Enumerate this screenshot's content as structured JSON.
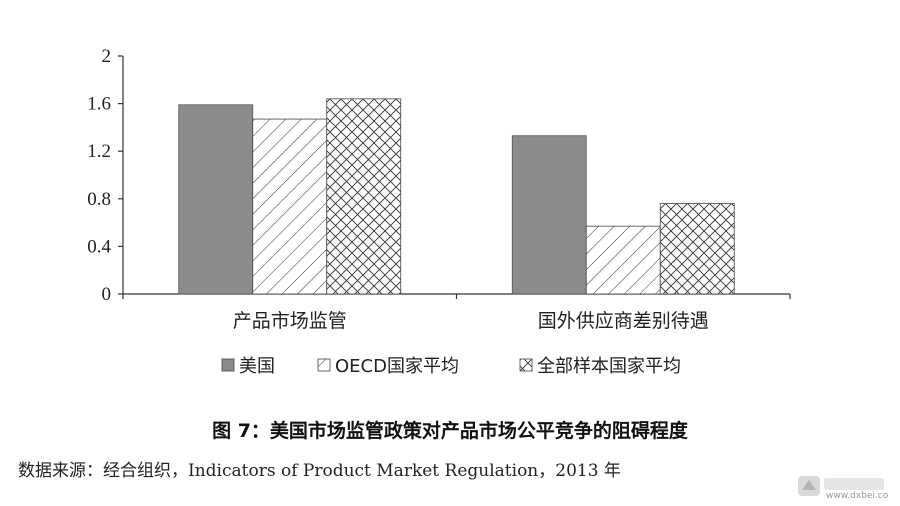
{
  "chart_data": {
    "type": "bar",
    "categories": [
      "产品市场监管",
      "国外供应商差别待遇"
    ],
    "series": [
      {
        "name": "美国",
        "values": [
          1.59,
          1.33
        ],
        "pattern": "solid",
        "color": "#8c8c8c"
      },
      {
        "name": "OECD国家平均",
        "values": [
          1.47,
          0.57
        ],
        "pattern": "diagonal"
      },
      {
        "name": "全部样本国家平均",
        "values": [
          1.64,
          0.76
        ],
        "pattern": "crosshatch"
      }
    ],
    "yticks": [
      "0",
      "0.4",
      "0.8",
      "1.2",
      "1.6",
      "2"
    ],
    "ylim": [
      0,
      2
    ],
    "legend_position": "bottom",
    "grid": false
  },
  "caption": "图 7：美国市场监管政策对产品市场公平竞争的阻碍程度",
  "source": "数据来源：经合组织，Indicators of Product Market Regulation，2013 年",
  "watermark": {
    "text": "www.dxbei.com"
  }
}
